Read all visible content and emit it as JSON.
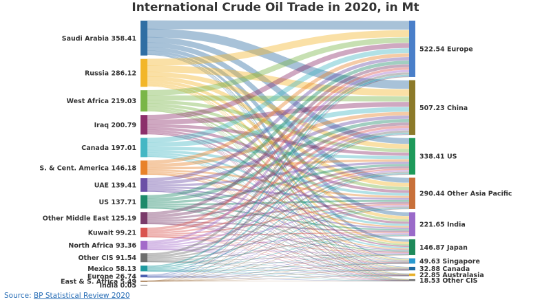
{
  "title": "International Crude Oil Trade in 2020, in Mt",
  "source_prefix": "Source: ",
  "source_link": "BP Statistical Review 2020",
  "chart_data": {
    "type": "sankey",
    "unit": "Mt",
    "sources": [
      {
        "name": "Saudi Arabia",
        "label": "Saudi Arabia 358.41",
        "value": 358.41,
        "color": "#2f6ea3"
      },
      {
        "name": "Russia",
        "label": "Russia 286.12",
        "value": 286.12,
        "color": "#f2b62a"
      },
      {
        "name": "West Africa",
        "label": "West Africa 219.03",
        "value": 219.03,
        "color": "#7ab648"
      },
      {
        "name": "Iraq",
        "label": "Iraq 200.79",
        "value": 200.79,
        "color": "#8c2f6b"
      },
      {
        "name": "Canada",
        "label": "Canada 197.01",
        "value": 197.01,
        "color": "#45b7c4"
      },
      {
        "name": "S. & Cent. America",
        "label": "S. & Cent. America 146.18",
        "value": 146.18,
        "color": "#e8822a"
      },
      {
        "name": "UAE",
        "label": "UAE 139.41",
        "value": 139.41,
        "color": "#6b4fa6"
      },
      {
        "name": "US",
        "label": "US 137.71",
        "value": 137.71,
        "color": "#1e8a6a"
      },
      {
        "name": "Other Middle East",
        "label": "Other Middle East 125.19",
        "value": 125.19,
        "color": "#7a3a6a"
      },
      {
        "name": "Kuwait",
        "label": "Kuwait 99.21",
        "value": 99.21,
        "color": "#d9534f"
      },
      {
        "name": "North Africa",
        "label": "North Africa 93.36",
        "value": 93.36,
        "color": "#a36ac9"
      },
      {
        "name": "Other CIS",
        "label": "Other CIS 91.54",
        "value": 91.54,
        "color": "#6e6e6e"
      },
      {
        "name": "Mexico",
        "label": "Mexico 58.13",
        "value": 58.13,
        "color": "#1f9aa0"
      },
      {
        "name": "Europe",
        "label": "Europe 26.74",
        "value": 26.74,
        "color": "#4a5fb0"
      },
      {
        "name": "East & S. Africa",
        "label": "East & S. Africa 5.49",
        "value": 5.49,
        "color": "#9a6b3a"
      },
      {
        "name": "India",
        "label": "India 0.05",
        "value": 0.05,
        "color": "#999999"
      }
    ],
    "targets": [
      {
        "name": "Europe",
        "label": "522.54 Europe",
        "value": 522.54,
        "color": "#4a7fc9"
      },
      {
        "name": "China",
        "label": "507.23 China",
        "value": 507.23,
        "color": "#8c7a2a"
      },
      {
        "name": "US",
        "label": "338.41 US",
        "value": 338.41,
        "color": "#1e9a5a"
      },
      {
        "name": "Other Asia Pacific",
        "label": "290.44 Other Asia Pacific",
        "value": 290.44,
        "color": "#c8703a"
      },
      {
        "name": "India",
        "label": "221.65 India",
        "value": 221.65,
        "color": "#9a6ac9"
      },
      {
        "name": "Japan",
        "label": "146.87 Japan",
        "value": 146.87,
        "color": "#1e8a5a"
      },
      {
        "name": "Singapore",
        "label": "49.63 Singapore",
        "value": 49.63,
        "color": "#2a9ad0"
      },
      {
        "name": "Canada",
        "label": "32.88 Canada",
        "value": 32.88,
        "color": "#1f6aa0"
      },
      {
        "name": "Australasia",
        "label": "22.85 Australasia",
        "value": 22.85,
        "color": "#e8b02a"
      },
      {
        "name": "Other CIS",
        "label": "18.53 Other CIS",
        "value": 18.53,
        "color": "#777777"
      }
    ]
  }
}
